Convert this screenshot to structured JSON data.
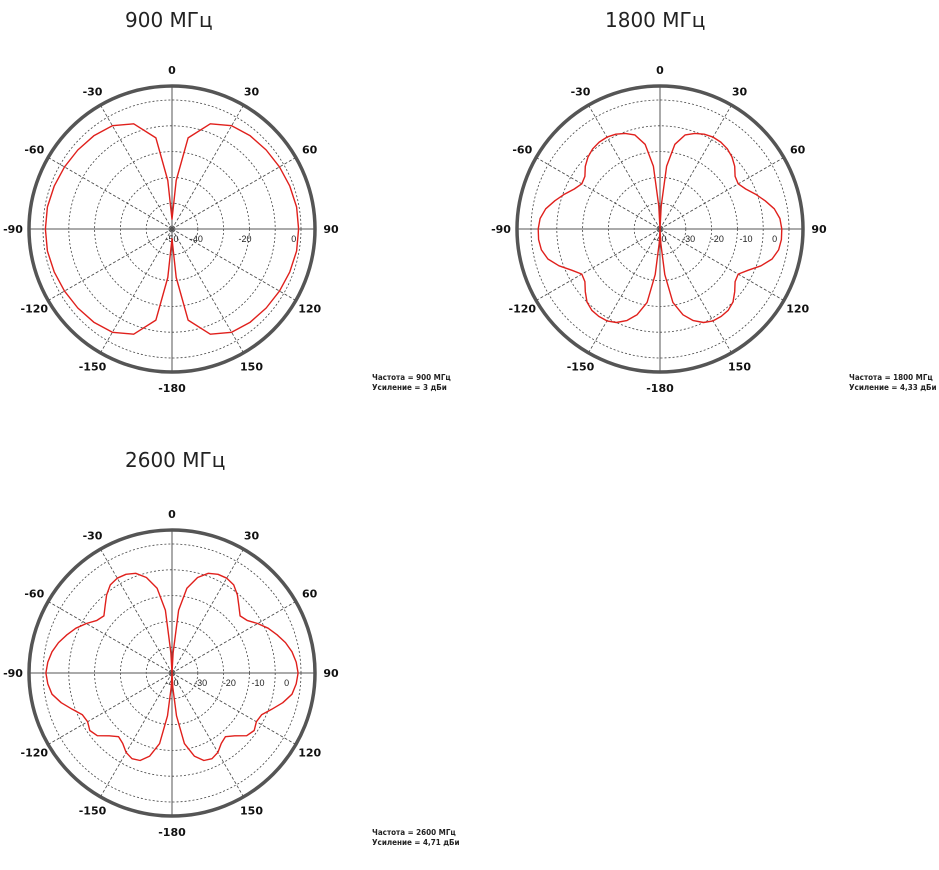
{
  "style": {
    "outer_ring_color": "#555555",
    "grid_color": "#444444",
    "trace_color": "#e0201c"
  },
  "panels": [
    {
      "title": "900 МГц",
      "info_freq": "Частота = 900 МГц",
      "info_gain": "Усиление = 3 дБи",
      "chart_data": {
        "type": "polar",
        "angle_labels": [
          "0",
          "30",
          "60",
          "90",
          "120",
          "150",
          "-180",
          "-150",
          "-120",
          "-90",
          "-60",
          "-30"
        ],
        "radial_ticks": [
          -50,
          -40,
          -20,
          0
        ],
        "radial_range": [
          -50,
          3
        ],
        "series": [
          {
            "theta": [
              0,
              5,
              10,
              20,
              30,
              40,
              50,
              60,
              70,
              80,
              90,
              100,
              110,
              120,
              130,
              140,
              150,
              160,
              170,
              175,
              180
            ],
            "r": [
              -46,
              -30,
              -12,
              -4,
              -1,
              0,
              0.5,
              1,
              1.5,
              2,
              2,
              2,
              1.5,
              1,
              0.5,
              0,
              -1,
              -4,
              -12,
              -30,
              -46
            ]
          }
        ]
      }
    },
    {
      "title": "1800 МГц",
      "info_freq": "Частота = 1800 МГц",
      "info_gain": "Усиление = 4,33 дБи",
      "chart_data": {
        "type": "polar",
        "angle_labels": [
          "0",
          "30",
          "60",
          "90",
          "120",
          "150",
          "-180",
          "-150",
          "-120",
          "-90",
          "-60",
          "-30"
        ],
        "radial_ticks": [
          -40,
          -30,
          -20,
          -10,
          0
        ],
        "radial_range": [
          -40,
          5
        ],
        "series": [
          {
            "theta": [
              0,
              3,
              6,
              10,
              15,
              20,
              25,
              30,
              35,
              40,
              45,
              50,
              55,
              60,
              65,
              70,
              75,
              80,
              85,
              90,
              95,
              100,
              105,
              110,
              115,
              120,
              125,
              130,
              135,
              140,
              145,
              150,
              155,
              160,
              165,
              170,
              174,
              177,
              180
            ],
            "r": [
              -40,
              -32,
              -18,
              -10,
              -6,
              -4.5,
              -3.5,
              -3,
              -3,
              -3.5,
              -4.5,
              -6,
              -8,
              -8.5,
              -7,
              -4.5,
              -2,
              0.5,
              2,
              2.5,
              2.5,
              2,
              0.5,
              -2.5,
              -6,
              -8.5,
              -8,
              -6,
              -4,
              -3,
              -2.8,
              -3,
              -4,
              -6,
              -9,
              -14,
              -24,
              -35,
              -40
            ]
          }
        ]
      }
    },
    {
      "title": "2600 МГц",
      "info_freq": "Частота = 2600 МГц",
      "info_gain": "Усиление = 4,71 дБи",
      "chart_data": {
        "type": "polar",
        "angle_labels": [
          "0",
          "30",
          "60",
          "90",
          "120",
          "150",
          "-180",
          "-150",
          "-120",
          "-90",
          "-60",
          "-30"
        ],
        "radial_ticks": [
          -40,
          -30,
          -20,
          -10,
          0
        ],
        "radial_range": [
          -40,
          5
        ],
        "series": [
          {
            "theta": [
              0,
              3,
              6,
              10,
              15,
              20,
              25,
              30,
              35,
              40,
              45,
              50,
              55,
              60,
              65,
              70,
              75,
              80,
              85,
              90,
              95,
              100,
              105,
              110,
              115,
              120,
              125,
              130,
              135,
              140,
              145,
              150,
              155,
              160,
              165,
              170,
              174,
              177,
              180
            ],
            "r": [
              -40,
              -33,
              -18,
              -10,
              -5.5,
              -3,
              -2,
              -1.8,
              -2.5,
              -4.5,
              -7,
              -9,
              -8,
              -5.5,
              -3,
              -1,
              1,
              2.5,
              3.5,
              4,
              3.5,
              2.5,
              0,
              -3,
              -5.5,
              -6,
              -5,
              -6,
              -9,
              -11,
              -10,
              -8,
              -7,
              -7.5,
              -10,
              -15,
              -25,
              -35,
              -40
            ]
          }
        ]
      }
    }
  ]
}
